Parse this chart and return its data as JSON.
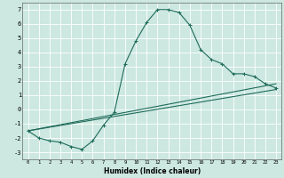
{
  "xlabel": "Humidex (Indice chaleur)",
  "background_color": "#cce8e0",
  "grid_color": "#ffffff",
  "line_color": "#1e6b5a",
  "xlim": [
    -0.5,
    23.5
  ],
  "ylim": [
    -3.5,
    7.5
  ],
  "xticks": [
    0,
    1,
    2,
    3,
    4,
    5,
    6,
    7,
    8,
    9,
    10,
    11,
    12,
    13,
    14,
    15,
    16,
    17,
    18,
    19,
    20,
    21,
    22,
    23
  ],
  "yticks": [
    -3,
    -2,
    -1,
    0,
    1,
    2,
    3,
    4,
    5,
    6,
    7
  ],
  "main_curve": {
    "x": [
      0,
      1,
      2,
      3,
      4,
      5,
      6,
      7,
      8,
      9,
      10,
      11,
      12,
      13,
      14,
      15,
      16,
      17,
      18,
      19,
      20,
      21,
      22,
      23
    ],
    "y": [
      -1.5,
      -2.0,
      -2.2,
      -2.3,
      -2.6,
      -2.8,
      -2.2,
      -1.1,
      -0.2,
      3.2,
      4.8,
      6.1,
      7.0,
      7.0,
      6.8,
      5.9,
      4.2,
      3.5,
      3.2,
      2.5,
      2.5,
      2.3,
      1.8,
      1.5
    ]
  },
  "trend1": {
    "x": [
      0,
      23
    ],
    "y": [
      -1.5,
      1.4
    ]
  },
  "trend2": {
    "x": [
      0,
      23
    ],
    "y": [
      -1.5,
      1.8
    ]
  },
  "connector": {
    "x": [
      7,
      8
    ],
    "y": [
      -1.1,
      -0.2
    ]
  }
}
